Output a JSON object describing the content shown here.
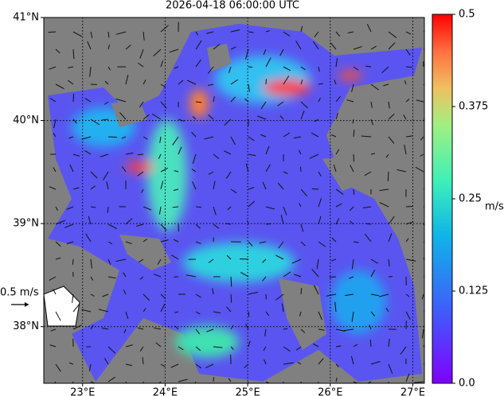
{
  "map": {
    "title": "2026-04-18 06:00:00 UTC",
    "xlim": [
      22.53,
      27.14
    ],
    "ylim": [
      37.45,
      41.0
    ],
    "xticks": [
      {
        "value": 23,
        "label": "23°E"
      },
      {
        "value": 24,
        "label": "24°E"
      },
      {
        "value": 25,
        "label": "25°E"
      },
      {
        "value": 26,
        "label": "26°E"
      },
      {
        "value": 27,
        "label": "27°E"
      }
    ],
    "yticks": [
      {
        "value": 38,
        "label": "38°N"
      },
      {
        "value": 39,
        "label": "39°N"
      },
      {
        "value": 40,
        "label": "40°N"
      },
      {
        "value": 41,
        "label": "41°N"
      }
    ],
    "grid": true
  },
  "colorbar": {
    "label": "m/s",
    "lim": [
      0,
      0.5
    ],
    "ticks": [
      {
        "value": 0,
        "label": "0.0"
      },
      0.125,
      0.25,
      0.375,
      0.5
    ]
  },
  "quiver_key": {
    "label": "0.5 m/s"
  }
}
